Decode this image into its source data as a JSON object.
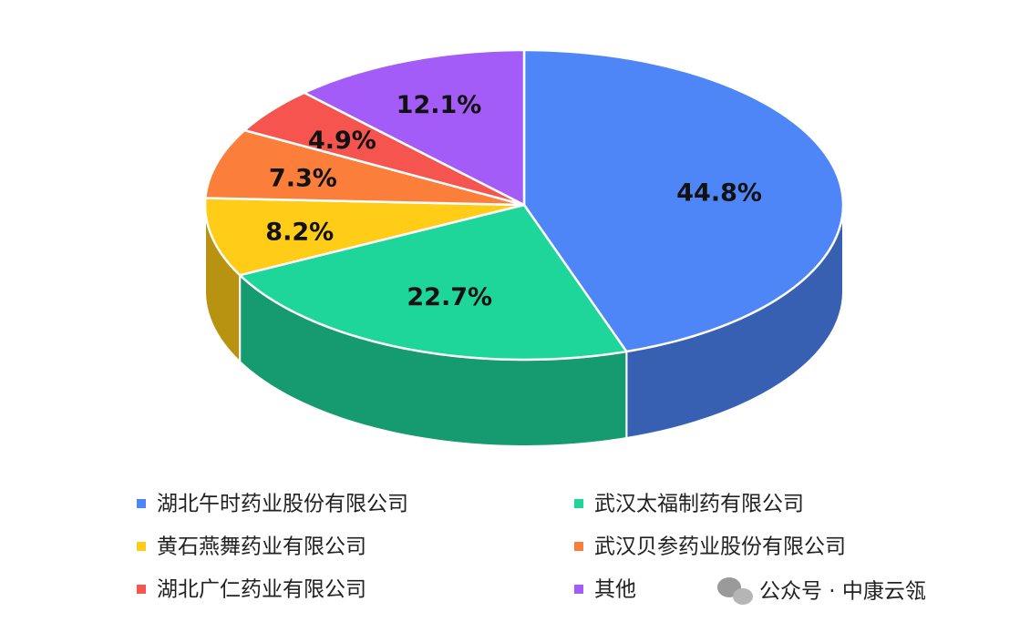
{
  "chart_data": {
    "type": "pie3d",
    "categories": [
      "湖北午时药业股份有限公司",
      "武汉太福制药有限公司",
      "黄石燕舞药业有限公司",
      "武汉贝参药业股份有限公司",
      "湖北广仁药业有限公司",
      "其他"
    ],
    "values": [
      44.8,
      22.7,
      8.2,
      7.3,
      4.9,
      12.1
    ],
    "value_labels": [
      "44.8%",
      "22.7%",
      "8.2%",
      "7.3%",
      "4.9%",
      "12.1%"
    ],
    "colors": [
      "#4e86f7",
      "#1fd69a",
      "#ffcc17",
      "#fb7f3a",
      "#f5544f",
      "#a35cf7"
    ],
    "legend": "bottom"
  },
  "watermark": "公众号 · 中康云瓴"
}
